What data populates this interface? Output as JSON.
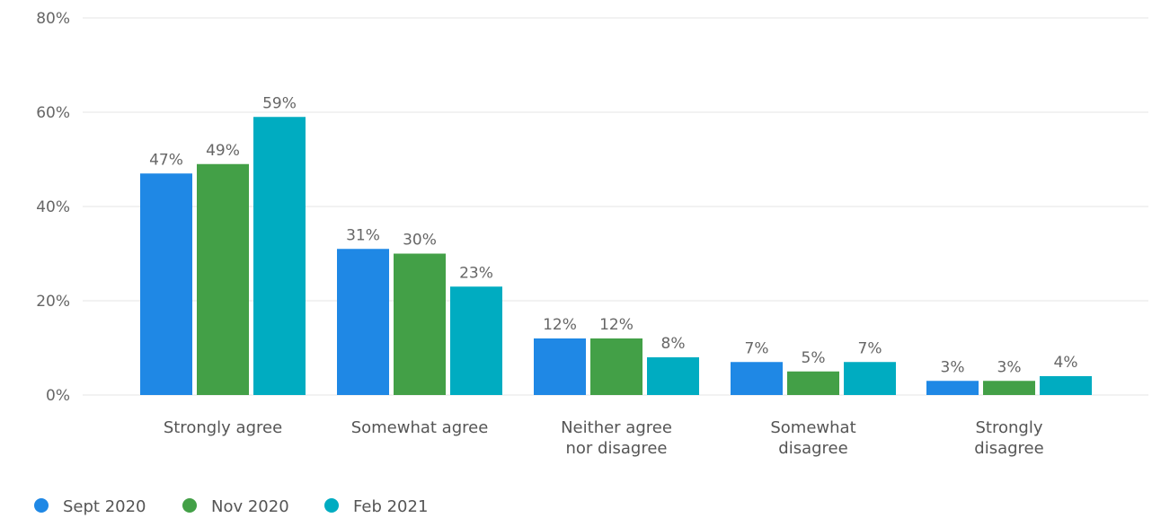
{
  "chart_data": {
    "type": "bar",
    "categories": [
      [
        "Strongly agree"
      ],
      [
        "Somewhat agree"
      ],
      [
        "Neither agree",
        "nor disagree"
      ],
      [
        "Somewhat",
        "disagree"
      ],
      [
        "Strongly",
        "disagree"
      ]
    ],
    "series": [
      {
        "name": "Sept 2020",
        "color": "#1f88e5",
        "values": [
          47,
          31,
          12,
          7,
          3
        ],
        "labels": [
          "47%",
          "31%",
          "12%",
          "7%",
          "3%"
        ]
      },
      {
        "name": "Nov 2020",
        "color": "#43a047",
        "values": [
          49,
          30,
          12,
          5,
          3
        ],
        "labels": [
          "49%",
          "30%",
          "12%",
          "5%",
          "3%"
        ]
      },
      {
        "name": "Feb 2021",
        "color": "#00acc1",
        "values": [
          59,
          23,
          8,
          7,
          4
        ],
        "labels": [
          "59%",
          "23%",
          "8%",
          "7%",
          "4%"
        ]
      }
    ],
    "yticks": [
      {
        "value": 0,
        "label": "0%"
      },
      {
        "value": 20,
        "label": "20%"
      },
      {
        "value": 40,
        "label": "40%"
      },
      {
        "value": 60,
        "label": "60%"
      },
      {
        "value": 80,
        "label": "80%"
      }
    ],
    "ylim": [
      0,
      80
    ],
    "grid": true,
    "legend_position": "bottom-left"
  }
}
